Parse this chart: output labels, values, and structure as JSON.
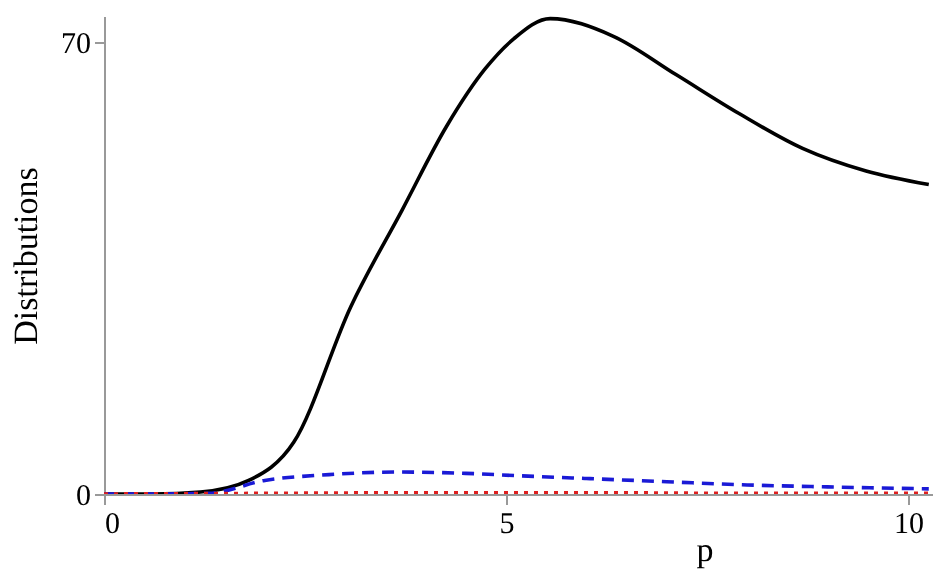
{
  "chart_data": {
    "type": "line",
    "xlabel": "p",
    "ylabel": "Distributions",
    "xlim": [
      0,
      10.3
    ],
    "ylim": [
      0,
      74
    ],
    "xticks": [
      0,
      5,
      10
    ],
    "yticks": [
      0,
      70
    ],
    "grid": false,
    "series": [
      {
        "color": "#000000",
        "line_style": "solid",
        "x": [
          0,
          0.6,
          1.2,
          1.8,
          2.36,
          3.07,
          3.71,
          4.26,
          4.74,
          5.1,
          5.55,
          6.33,
          7.12,
          7.9,
          8.69,
          9.48,
          10.26
        ],
        "values": [
          0,
          0,
          0.3,
          2.1,
          8,
          29,
          44,
          56.9,
          65.8,
          70.5,
          73.6,
          70.9,
          64.9,
          58.9,
          53.5,
          50,
          47.9
        ]
      },
      {
        "color": "#1a1ad6",
        "line_style": "dashed",
        "x": [
          0,
          0.6,
          1.3,
          2,
          2.8,
          3.64,
          4.5,
          5.2,
          6,
          7,
          8,
          9,
          10.26
        ],
        "values": [
          0,
          0,
          0.1,
          2.1,
          3,
          3.4,
          3.2,
          2.8,
          2.4,
          1.9,
          1.4,
          1.1,
          0.8
        ]
      },
      {
        "color": "#e02020",
        "line_style": "dotted",
        "x": [
          0,
          2,
          4,
          6,
          8,
          10.26
        ],
        "values": [
          0,
          0.1,
          0.2,
          0.2,
          0.1,
          0.1
        ]
      }
    ]
  }
}
